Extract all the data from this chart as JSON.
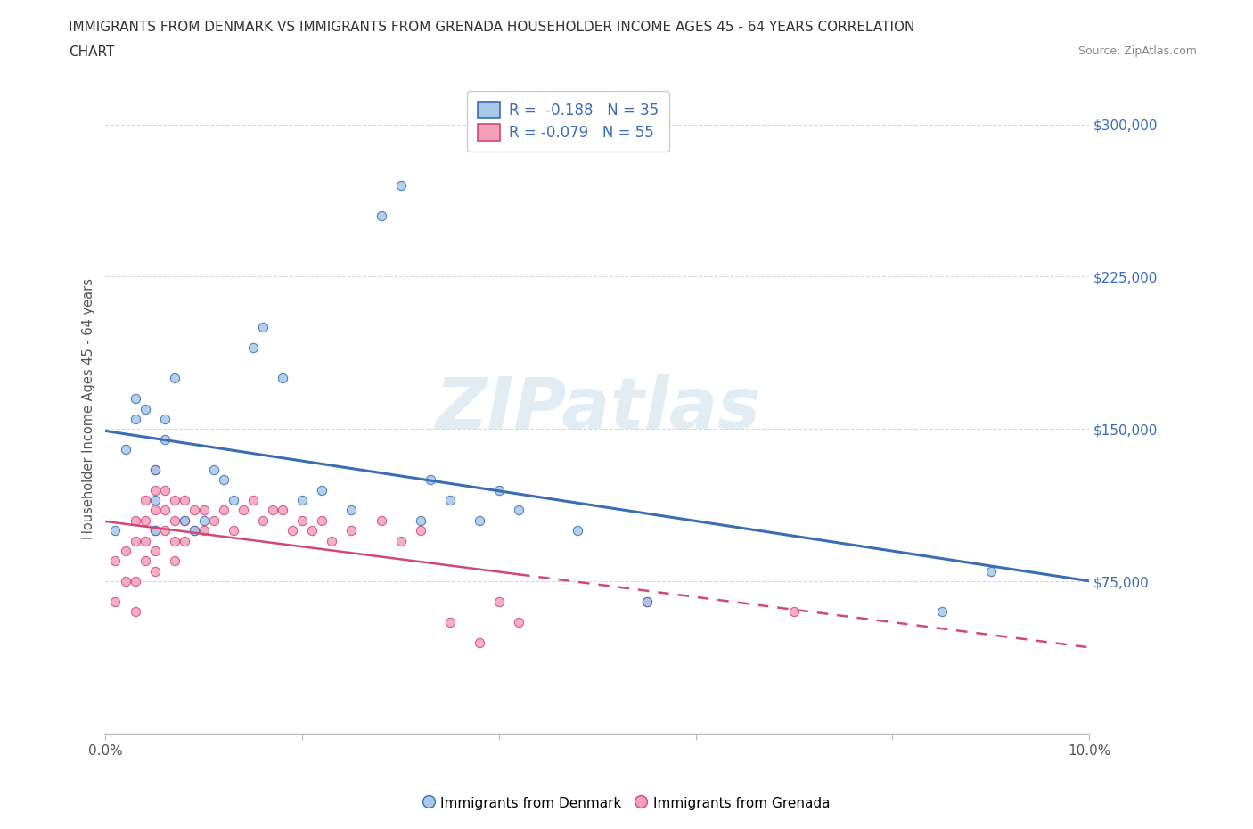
{
  "title_line1": "IMMIGRANTS FROM DENMARK VS IMMIGRANTS FROM GRENADA HOUSEHOLDER INCOME AGES 45 - 64 YEARS CORRELATION",
  "title_line2": "CHART",
  "source_text": "Source: ZipAtlas.com",
  "ylabel": "Householder Income Ages 45 - 64 years",
  "xlim": [
    0.0,
    0.1
  ],
  "ylim": [
    0,
    320000
  ],
  "yticks": [
    0,
    75000,
    150000,
    225000,
    300000
  ],
  "ytick_labels": [
    "",
    "$75,000",
    "$150,000",
    "$225,000",
    "$300,000"
  ],
  "xticks": [
    0.0,
    0.02,
    0.04,
    0.06,
    0.08,
    0.1
  ],
  "xtick_labels": [
    "0.0%",
    "",
    "",
    "",
    "",
    "10.0%"
  ],
  "denmark_R": -0.188,
  "denmark_N": 35,
  "grenada_R": -0.079,
  "grenada_N": 55,
  "denmark_color": "#a8c8e8",
  "grenada_color": "#f4a0b8",
  "denmark_line_color": "#3a6db5",
  "grenada_line_color": "#d04878",
  "background_color": "#ffffff",
  "grid_color": "#d8d8d8",
  "legend_R_color": "#3a6db5",
  "watermark": "ZIPatlas",
  "denmark_x": [
    0.001,
    0.002,
    0.003,
    0.003,
    0.004,
    0.005,
    0.005,
    0.005,
    0.006,
    0.006,
    0.007,
    0.008,
    0.009,
    0.01,
    0.011,
    0.012,
    0.013,
    0.015,
    0.016,
    0.018,
    0.02,
    0.022,
    0.025,
    0.028,
    0.03,
    0.032,
    0.033,
    0.035,
    0.038,
    0.04,
    0.042,
    0.048,
    0.055,
    0.085,
    0.09
  ],
  "denmark_y": [
    100000,
    140000,
    155000,
    165000,
    160000,
    130000,
    115000,
    100000,
    155000,
    145000,
    175000,
    105000,
    100000,
    105000,
    130000,
    125000,
    115000,
    190000,
    200000,
    175000,
    115000,
    120000,
    110000,
    255000,
    270000,
    105000,
    125000,
    115000,
    105000,
    120000,
    110000,
    100000,
    65000,
    60000,
    80000
  ],
  "grenada_x": [
    0.001,
    0.001,
    0.002,
    0.002,
    0.003,
    0.003,
    0.003,
    0.003,
    0.004,
    0.004,
    0.004,
    0.004,
    0.005,
    0.005,
    0.005,
    0.005,
    0.005,
    0.005,
    0.006,
    0.006,
    0.006,
    0.007,
    0.007,
    0.007,
    0.007,
    0.008,
    0.008,
    0.008,
    0.009,
    0.009,
    0.01,
    0.01,
    0.011,
    0.012,
    0.013,
    0.014,
    0.015,
    0.016,
    0.017,
    0.018,
    0.019,
    0.02,
    0.021,
    0.022,
    0.023,
    0.025,
    0.028,
    0.03,
    0.032,
    0.035,
    0.038,
    0.04,
    0.042,
    0.055,
    0.07
  ],
  "grenada_y": [
    85000,
    65000,
    90000,
    75000,
    105000,
    95000,
    75000,
    60000,
    115000,
    105000,
    95000,
    85000,
    130000,
    120000,
    110000,
    100000,
    90000,
    80000,
    120000,
    110000,
    100000,
    115000,
    105000,
    95000,
    85000,
    115000,
    105000,
    95000,
    110000,
    100000,
    110000,
    100000,
    105000,
    110000,
    100000,
    110000,
    115000,
    105000,
    110000,
    110000,
    100000,
    105000,
    100000,
    105000,
    95000,
    100000,
    105000,
    95000,
    100000,
    55000,
    45000,
    65000,
    55000,
    65000,
    60000
  ]
}
